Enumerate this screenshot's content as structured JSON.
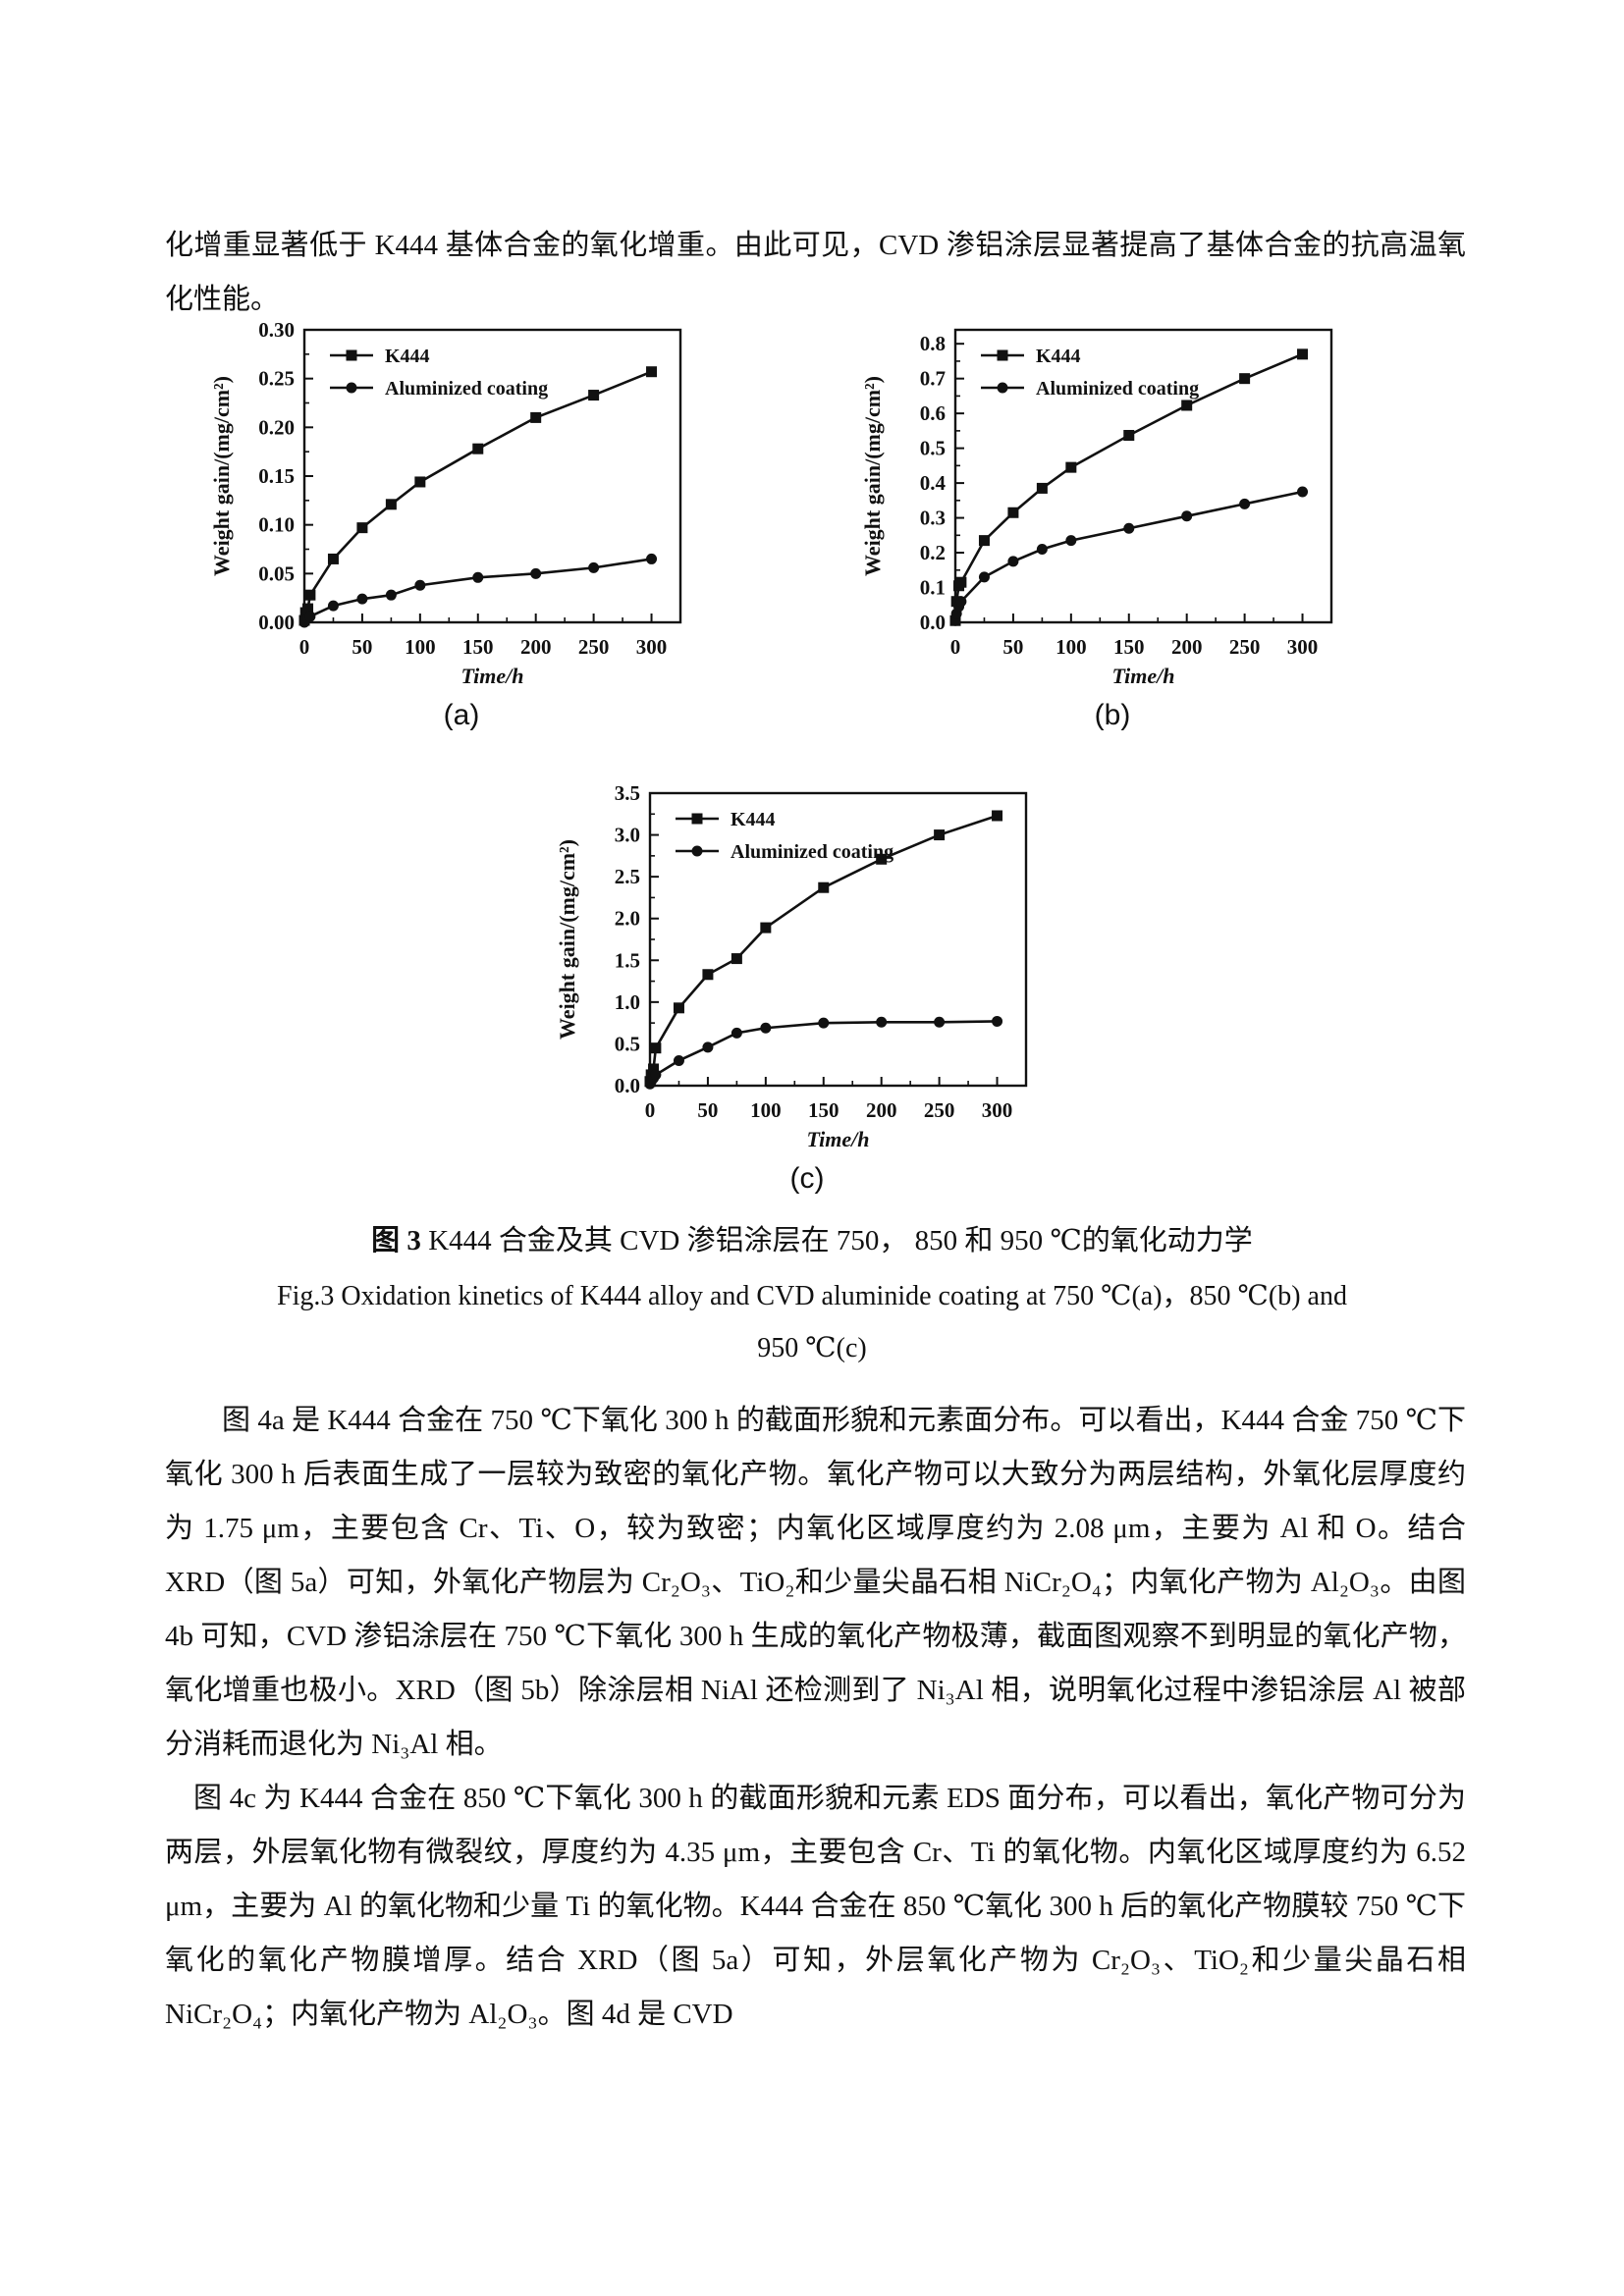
{
  "page": {
    "intro_text": "化增重显著低于 K444 基体合金的氧化增重。由此可见，CVD 渗铝涂层显著提高了基体合金的抗高温氧化性能。",
    "caption_zh_bold": "图 3",
    "caption_zh_rest": " K444 合金及其 CVD 渗铝涂层在 750， 850 和 950 ℃的氧化动力学",
    "caption_en_line1": "Fig.3 Oxidation kinetics of K444 alloy and CVD aluminide coating at 750 ℃(a)，850 ℃(b) and",
    "caption_en_line2": "950 ℃(c)",
    "para1": "图 4a 是 K444 合金在 750 ℃下氧化 300 h 的截面形貌和元素面分布。可以看出，K444 合金 750 ℃下氧化 300 h 后表面生成了一层较为致密的氧化产物。氧化产物可以大致分为两层结构，外氧化层厚度约为 1.75 μm，主要包含 Cr、Ti、O，较为致密；内氧化区域厚度约为 2.08 μm，主要为 Al 和 O。结合 XRD（图 5a）可知，外氧化产物层为 Cr₂O₃、TiO₂和少量尖晶石相 NiCr₂O₄；内氧化产物为 Al₂O₃。由图 4b 可知，CVD 渗铝涂层在 750 ℃下氧化 300 h 生成的氧化产物极薄，截面图观察不到明显的氧化产物，氧化增重也极小。XRD（图 5b）除涂层相 NiAl 还检测到了 Ni₃Al 相，说明氧化过程中渗铝涂层 Al 被部分消耗而退化为 Ni₃Al 相。",
    "para2": "图 4c 为 K444 合金在 850 ℃下氧化 300 h 的截面形貌和元素 EDS 面分布，可以看出，氧化产物可分为两层，外层氧化物有微裂纹，厚度约为 4.35 μm，主要包含 Cr、Ti 的氧化物。内氧化区域厚度约为 6.52 μm，主要为 Al 的氧化物和少量 Ti 的氧化物。K444 合金在 850 ℃氧化 300 h 后的氧化产物膜较 750 ℃下氧化的氧化产物膜增厚。结合 XRD（图 5a）可知，外层氧化产物为 Cr₂O₃、TiO₂和少量尖晶石相 NiCr₂O₄；内氧化产物为 Al₂O₃。图 4d 是 CVD"
  },
  "chart_data": [
    {
      "type": "line",
      "panel_label": "(a)",
      "temperature": "750 ℃",
      "xlabel": "Time/h",
      "ylabel": "Weight gain/(mg/cm²)",
      "xlim": [
        0,
        325
      ],
      "ylim": [
        0,
        0.3
      ],
      "xticks": [
        0,
        50,
        100,
        150,
        200,
        250,
        300
      ],
      "yticks": [
        0.0,
        0.05,
        0.1,
        0.15,
        0.2,
        0.25,
        0.3
      ],
      "xminor": 25,
      "yminor": 0.025,
      "ydecimals": 2,
      "grid": false,
      "legend_position": "top-left",
      "x": [
        0,
        1,
        3,
        5,
        25,
        50,
        75,
        100,
        150,
        200,
        250,
        300
      ],
      "series": [
        {
          "name": "K444",
          "marker": "square",
          "values": [
            0.002,
            0.01,
            0.014,
            0.028,
            0.065,
            0.097,
            0.121,
            0.144,
            0.178,
            0.21,
            0.233,
            0.257
          ]
        },
        {
          "name": "Aluminized coating",
          "marker": "circle",
          "values": [
            0.0,
            0.002,
            0.004,
            0.006,
            0.017,
            0.024,
            0.028,
            0.038,
            0.046,
            0.05,
            0.056,
            0.065
          ]
        }
      ]
    },
    {
      "type": "line",
      "panel_label": "(b)",
      "temperature": "850 ℃",
      "xlabel": "Time/h",
      "ylabel": "Weight gain/(mg/cm²)",
      "xlim": [
        0,
        325
      ],
      "ylim": [
        0,
        0.84
      ],
      "xticks": [
        0,
        50,
        100,
        150,
        200,
        250,
        300
      ],
      "yticks": [
        0.0,
        0.1,
        0.2,
        0.3,
        0.4,
        0.5,
        0.6,
        0.7,
        0.8
      ],
      "xminor": 25,
      "yminor": 0.05,
      "ydecimals": 1,
      "grid": false,
      "legend_position": "top-left",
      "x": [
        0,
        1,
        3,
        5,
        25,
        50,
        75,
        100,
        150,
        200,
        250,
        300
      ],
      "series": [
        {
          "name": "K444",
          "marker": "square",
          "values": [
            0.005,
            0.06,
            0.105,
            0.115,
            0.235,
            0.315,
            0.385,
            0.445,
            0.537,
            0.623,
            0.7,
            0.77
          ]
        },
        {
          "name": "Aluminized coating",
          "marker": "circle",
          "values": [
            0.005,
            0.025,
            0.045,
            0.06,
            0.13,
            0.175,
            0.21,
            0.235,
            0.27,
            0.305,
            0.34,
            0.375
          ]
        }
      ]
    },
    {
      "type": "line",
      "panel_label": "(c)",
      "temperature": "950 ℃",
      "xlabel": "Time/h",
      "ylabel": "Weight gain/(mg/cm²)",
      "xlim": [
        0,
        325
      ],
      "ylim": [
        0,
        3.5
      ],
      "xticks": [
        0,
        50,
        100,
        150,
        200,
        250,
        300
      ],
      "yticks": [
        0.0,
        0.5,
        1.0,
        1.5,
        2.0,
        2.5,
        3.0,
        3.5
      ],
      "xminor": 25,
      "yminor": 0.25,
      "ydecimals": 1,
      "grid": false,
      "legend_position": "top-left",
      "x": [
        0,
        1,
        3,
        5,
        25,
        50,
        75,
        100,
        150,
        200,
        250,
        300
      ],
      "series": [
        {
          "name": "K444",
          "marker": "square",
          "values": [
            0.05,
            0.13,
            0.2,
            0.45,
            0.93,
            1.33,
            1.52,
            1.89,
            2.37,
            2.71,
            3.0,
            3.23
          ]
        },
        {
          "name": "Aluminized coating",
          "marker": "circle",
          "values": [
            0.02,
            0.05,
            0.09,
            0.13,
            0.3,
            0.46,
            0.63,
            0.69,
            0.75,
            0.76,
            0.76,
            0.77
          ]
        }
      ]
    }
  ]
}
